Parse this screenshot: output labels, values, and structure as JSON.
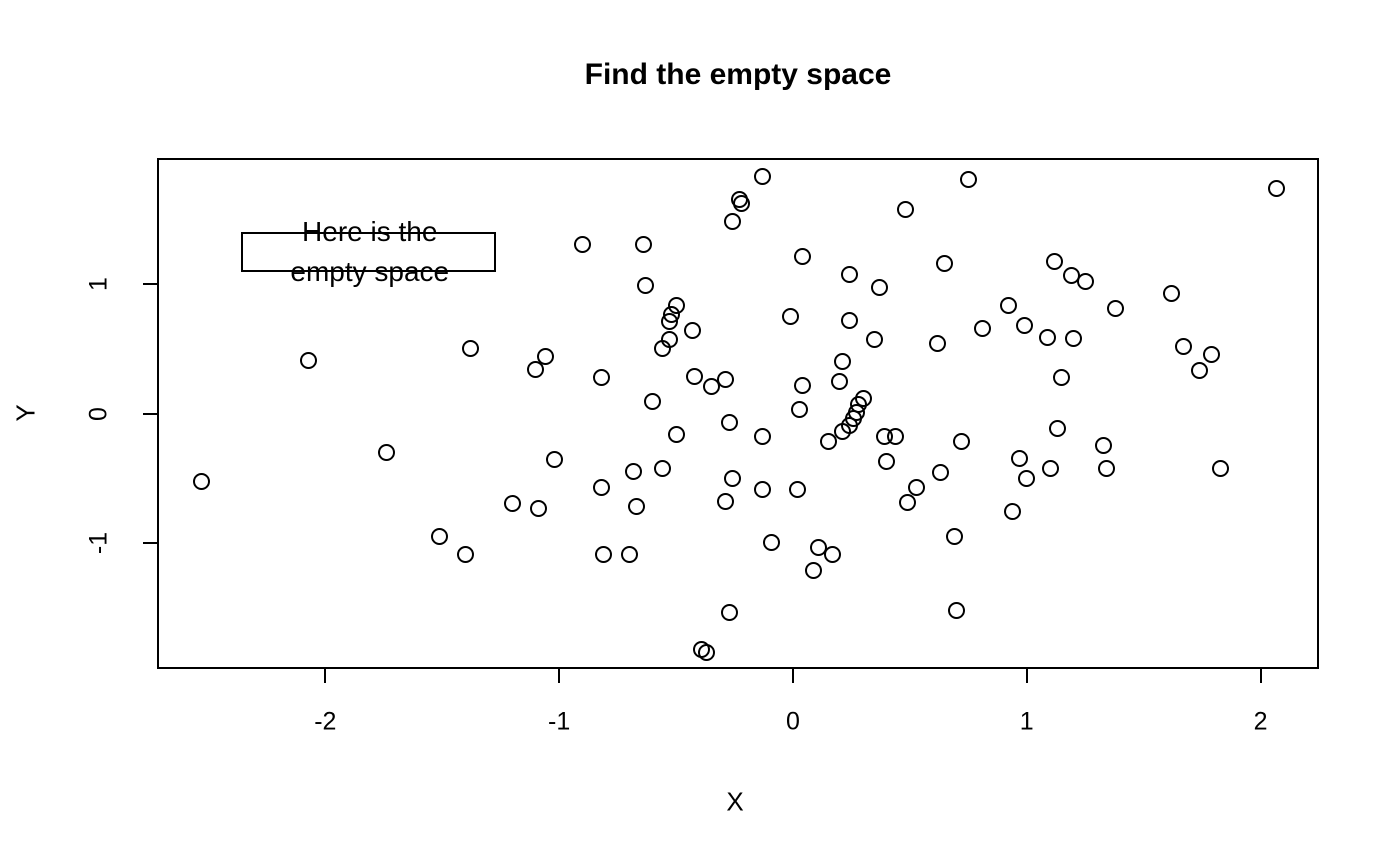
{
  "title": "Find the empty space",
  "chart_data": {
    "type": "scatter",
    "title": "Find the empty space",
    "xlabel": "X",
    "ylabel": "Y",
    "xlim": [
      -2.72,
      2.25
    ],
    "ylim": [
      -1.98,
      1.98
    ],
    "x_ticks": [
      -2,
      -1,
      0,
      1,
      2
    ],
    "x_tick_labels": [
      "-2",
      "-1",
      "0",
      "1",
      "2"
    ],
    "y_ticks": [
      -1,
      0,
      1
    ],
    "y_tick_labels": [
      "-1",
      "0",
      "1"
    ],
    "grid": false,
    "legend": null,
    "marker": "open-circle",
    "marker_color": "#000000",
    "background_color": "#ffffff",
    "annotation": {
      "lines": [
        "Here is the",
        "empty space"
      ],
      "box": {
        "x1": -2.36,
        "x2": -1.27,
        "y1": 1.1,
        "y2": 1.41
      },
      "text_x": -1.81,
      "text_y": 1.25
    },
    "points": [
      [
        -2.07,
        0.41
      ],
      [
        -1.38,
        0.5
      ],
      [
        -1.06,
        0.44
      ],
      [
        -1.1,
        0.34
      ],
      [
        -0.13,
        1.84
      ],
      [
        -0.23,
        1.66
      ],
      [
        -0.22,
        1.63
      ],
      [
        -0.26,
        1.49
      ],
      [
        -0.9,
        1.31
      ],
      [
        -0.64,
        1.31
      ],
      [
        0.48,
        1.58
      ],
      [
        0.04,
        1.22
      ],
      [
        0.24,
        1.08
      ],
      [
        0.37,
        0.98
      ],
      [
        0.65,
        1.16
      ],
      [
        -0.63,
        0.99
      ],
      [
        -0.5,
        0.84
      ],
      [
        -0.52,
        0.77
      ],
      [
        -0.53,
        0.71
      ],
      [
        -0.43,
        0.64
      ],
      [
        -0.53,
        0.57
      ],
      [
        -0.56,
        0.5
      ],
      [
        -0.01,
        0.75
      ],
      [
        0.24,
        0.72
      ],
      [
        0.35,
        0.57
      ],
      [
        0.62,
        0.54
      ],
      [
        0.21,
        0.4
      ],
      [
        0.2,
        0.25
      ],
      [
        -0.82,
        0.28
      ],
      [
        -0.42,
        0.29
      ],
      [
        -0.35,
        0.21
      ],
      [
        -0.29,
        0.26
      ],
      [
        -0.6,
        0.09
      ],
      [
        0.04,
        0.22
      ],
      [
        0.03,
        0.03
      ],
      [
        0.3,
        0.12
      ],
      [
        0.28,
        0.07
      ],
      [
        0.27,
        0.01
      ],
      [
        0.26,
        -0.04
      ],
      [
        0.24,
        -0.09
      ],
      [
        0.21,
        -0.14
      ],
      [
        0.75,
        1.81
      ],
      [
        2.07,
        1.74
      ],
      [
        1.12,
        1.18
      ],
      [
        1.19,
        1.07
      ],
      [
        1.25,
        1.02
      ],
      [
        1.62,
        0.93
      ],
      [
        0.92,
        0.84
      ],
      [
        1.38,
        0.81
      ],
      [
        0.81,
        0.66
      ],
      [
        0.99,
        0.68
      ],
      [
        1.09,
        0.59
      ],
      [
        1.2,
        0.58
      ],
      [
        1.67,
        0.52
      ],
      [
        1.79,
        0.46
      ],
      [
        1.74,
        0.33
      ],
      [
        1.15,
        0.28
      ],
      [
        -1.74,
        -0.3
      ],
      [
        -2.53,
        -0.53
      ],
      [
        -1.2,
        -0.7
      ],
      [
        -1.09,
        -0.74
      ],
      [
        -1.51,
        -0.95
      ],
      [
        -1.4,
        -1.09
      ],
      [
        -1.02,
        -0.36
      ],
      [
        -0.5,
        -0.16
      ],
      [
        -0.27,
        -0.07
      ],
      [
        -0.13,
        -0.18
      ],
      [
        0.15,
        -0.22
      ],
      [
        0.39,
        -0.18
      ],
      [
        0.44,
        -0.18
      ],
      [
        0.4,
        -0.37
      ],
      [
        0.63,
        -0.46
      ],
      [
        0.53,
        -0.57
      ],
      [
        0.49,
        -0.69
      ],
      [
        -0.82,
        -0.57
      ],
      [
        -0.68,
        -0.45
      ],
      [
        -0.56,
        -0.43
      ],
      [
        -0.67,
        -0.72
      ],
      [
        -0.26,
        -0.5
      ],
      [
        -0.29,
        -0.68
      ],
      [
        -0.13,
        -0.59
      ],
      [
        0.02,
        -0.59
      ],
      [
        -0.81,
        -1.09
      ],
      [
        -0.7,
        -1.09
      ],
      [
        -0.09,
        -1.0
      ],
      [
        0.11,
        -1.04
      ],
      [
        0.17,
        -1.09
      ],
      [
        0.09,
        -1.22
      ],
      [
        -0.27,
        -1.54
      ],
      [
        -0.39,
        -1.83
      ],
      [
        -0.37,
        -1.85
      ],
      [
        1.13,
        -0.12
      ],
      [
        0.72,
        -0.22
      ],
      [
        0.97,
        -0.35
      ],
      [
        1.0,
        -0.5
      ],
      [
        1.1,
        -0.43
      ],
      [
        1.33,
        -0.25
      ],
      [
        1.34,
        -0.43
      ],
      [
        1.83,
        -0.43
      ],
      [
        0.94,
        -0.76
      ],
      [
        0.69,
        -0.95
      ],
      [
        0.7,
        -1.53
      ]
    ]
  }
}
